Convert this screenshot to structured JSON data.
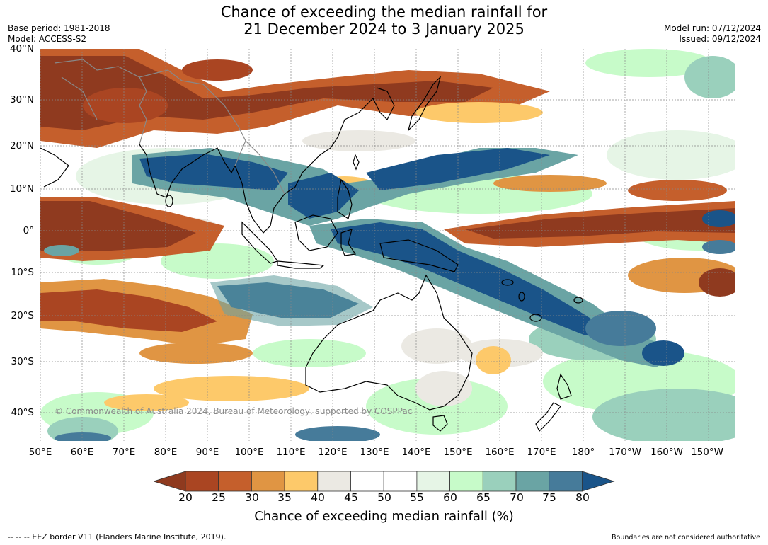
{
  "title": {
    "line1": "Chance of exceeding the median rainfall for",
    "line2": "21 December 2024 to 3 January 2025"
  },
  "header_left": {
    "base_period": "Base period: 1981-2018",
    "model": "Model: ACCESS-S2"
  },
  "header_right": {
    "model_run": "Model run: 07/12/2024",
    "issued": "Issued: 09/12/2024"
  },
  "map": {
    "lat_ticks": [
      "40°N",
      "30°N",
      "20°N",
      "10°N",
      "0°",
      "10°S",
      "20°S",
      "30°S",
      "40°S"
    ],
    "lon_ticks": [
      "50°E",
      "60°E",
      "70°E",
      "80°E",
      "90°E",
      "100°E",
      "110°E",
      "120°E",
      "130°E",
      "140°E",
      "150°E",
      "160°E",
      "170°E",
      "180°",
      "170°W",
      "160°W",
      "150°W"
    ],
    "copyright": "© Commonwealth of Australia 2024, Bureau of Meteorology, supported by COSPPac"
  },
  "colorbar": {
    "labels": [
      "20",
      "25",
      "30",
      "35",
      "40",
      "45",
      "50",
      "55",
      "60",
      "65",
      "70",
      "75",
      "80"
    ],
    "colors": [
      "#8f3a1f",
      "#aa4522",
      "#c55f2c",
      "#e09543",
      "#fdc96a",
      "#ebe9e3",
      "#ffffff",
      "#ffffff",
      "#e6f5e6",
      "#c7fbc9",
      "#9ad0bc",
      "#6aa4a4",
      "#467b9a",
      "#1a5489"
    ],
    "title": "Chance of exceeding median rainfall (%)"
  },
  "footer": {
    "left": "--  --  -- EEZ border V11 (Flanders Marine Institute, 2019).",
    "right": "Boundaries are not considered authoritative"
  }
}
